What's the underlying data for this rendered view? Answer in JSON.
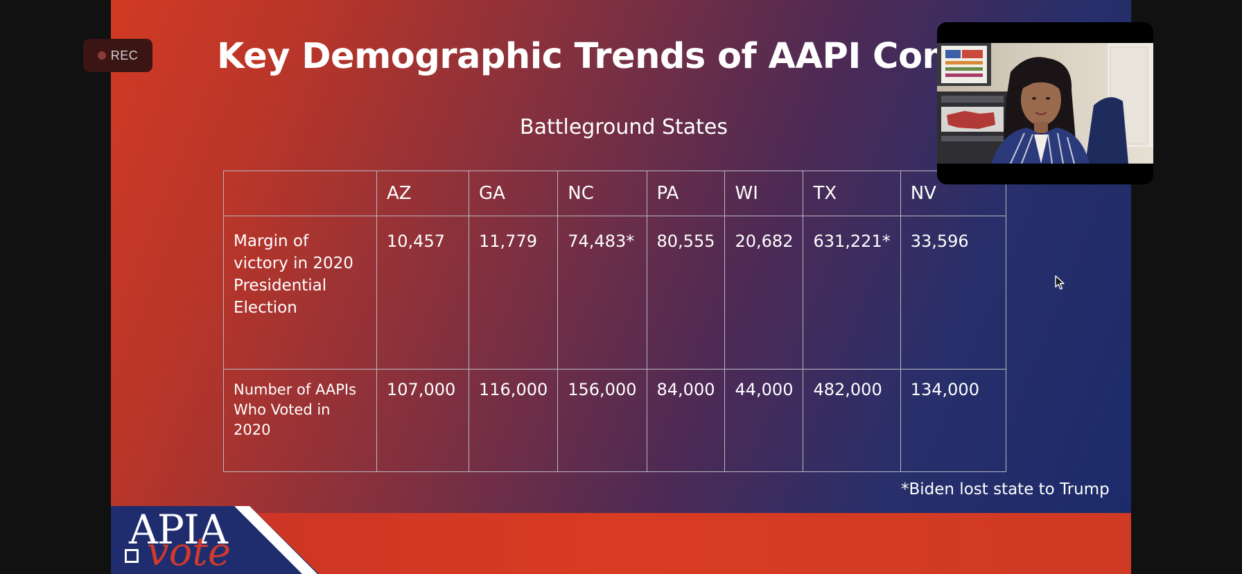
{
  "recording": {
    "label": "REC"
  },
  "slide": {
    "title": "Key Demographic Trends of AAPI Comm",
    "subtitle": "Battleground States",
    "table": {
      "columns": [
        "AZ",
        "GA",
        "NC",
        "PA",
        "WI",
        "TX",
        "NV"
      ],
      "rows": [
        {
          "label": "Margin of victory in 2020 Presidential Election",
          "label_lines": [
            "Margin of",
            "victory in 2020",
            "Presidential",
            "Election"
          ],
          "values": [
            "10,457",
            "11,779",
            "74,483*",
            "80,555",
            "20,682",
            "631,221*",
            "33,596"
          ]
        },
        {
          "label": "Number of AAPIs Who Voted in 2020",
          "label_lines": [
            "Number of AAPIs",
            "Who Voted in",
            "2020"
          ],
          "values": [
            "107,000",
            "116,000",
            "156,000",
            "84,000",
            "44,000",
            "482,000",
            "134,000"
          ]
        }
      ]
    },
    "footnote": "*Biden lost state to Trump",
    "logo": {
      "line1": "APIA",
      "line2": "vote"
    }
  },
  "colors": {
    "slide_red": "#d23a24",
    "slide_navy": "#1b2a6b",
    "logo_navy": "#1f2d6e",
    "logo_red": "#cf3a2c",
    "rec_bg": "#3b1414"
  },
  "icons": {
    "recording": "record-dot-icon",
    "pointer": "mouse-cursor-icon"
  }
}
